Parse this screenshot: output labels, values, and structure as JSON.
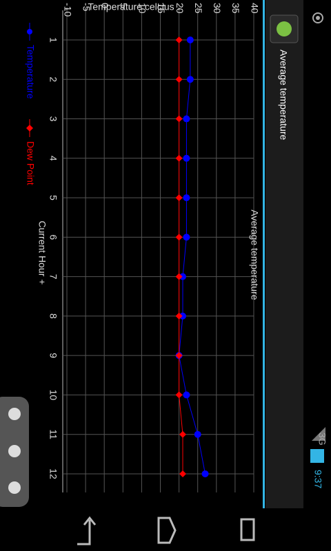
{
  "status_bar": {
    "time": "9:37",
    "network": "3G"
  },
  "action_bar": {
    "title": "Average temperature"
  },
  "chart_data": {
    "type": "line",
    "title": "Average temperature",
    "x_label": "Current Hour +",
    "y_label": "Temperature celcius",
    "categories": [
      "1",
      "2",
      "3",
      "4",
      "5",
      "6",
      "7",
      "8",
      "9",
      "10",
      "11",
      "12"
    ],
    "series": [
      {
        "name": "Temperature",
        "color": "#0000ff",
        "values": [
          23,
          23,
          22,
          22,
          22,
          22,
          21,
          21,
          20,
          22,
          25,
          27
        ]
      },
      {
        "name": "Dew Point",
        "color": "#ff0000",
        "values": [
          20,
          20,
          20,
          20,
          20,
          20,
          20,
          20,
          20,
          20,
          21,
          21
        ]
      }
    ],
    "ylim": [
      -10,
      40
    ],
    "yticks": [
      -10,
      -5,
      0,
      5,
      10,
      15,
      20,
      25,
      30,
      35,
      40
    ],
    "grid": true
  }
}
